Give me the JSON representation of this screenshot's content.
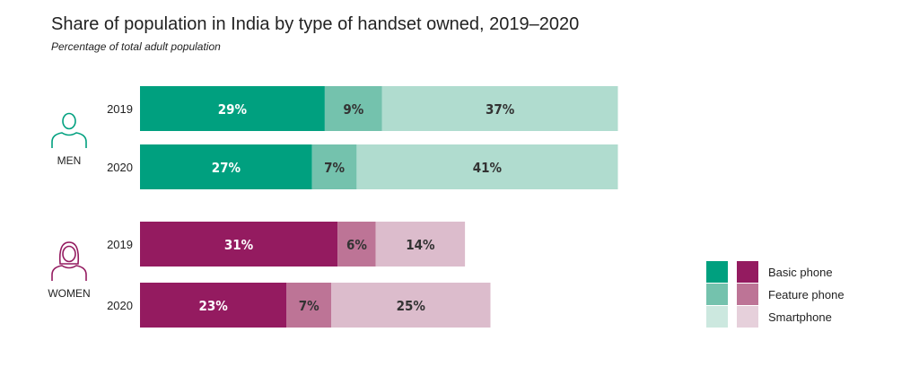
{
  "chart_data": {
    "type": "bar",
    "orientation": "horizontal",
    "stacked": true,
    "title": "Share of population in India by type of handset owned, 2019–2020",
    "subtitle": "Percentage of total adult population",
    "xlim": [
      0,
      100
    ],
    "grid": false,
    "legend_position": "bottom-right",
    "series_names": [
      "Basic phone",
      "Feature phone",
      "Smartphone"
    ],
    "groups": [
      {
        "name": "MEN",
        "icon": "man-icon",
        "colors": [
          "#00a07f",
          "#74c2ad",
          "#b0dccf"
        ],
        "label_colors": [
          "#ffffff",
          "#333333",
          "#333333"
        ],
        "bars": [
          {
            "year": "2019",
            "values": [
              29,
              9,
              37
            ],
            "labels": [
              "29%",
              "9%",
              "37%"
            ]
          },
          {
            "year": "2020",
            "values": [
              27,
              7,
              41
            ],
            "labels": [
              "27%",
              "7%",
              "41%"
            ]
          }
        ]
      },
      {
        "name": "WOMEN",
        "icon": "woman-icon",
        "colors": [
          "#941b60",
          "#bd7496",
          "#dcbccc"
        ],
        "label_colors": [
          "#ffffff",
          "#333333",
          "#333333"
        ],
        "bars": [
          {
            "year": "2019",
            "values": [
              31,
              6,
              14
            ],
            "labels": [
              "31%",
              "6%",
              "14%"
            ]
          },
          {
            "year": "2020",
            "values": [
              23,
              7,
              25
            ],
            "labels": [
              "23%",
              "7%",
              "25%"
            ]
          }
        ]
      }
    ],
    "legend": [
      {
        "label": "Basic phone",
        "men_color": "#00a07f",
        "women_color": "#941b60"
      },
      {
        "label": "Feature phone",
        "men_color": "#74c2ad",
        "women_color": "#bd7496"
      },
      {
        "label": "Smartphone",
        "men_color": "#cce8df",
        "women_color": "#e6d0db"
      }
    ]
  }
}
